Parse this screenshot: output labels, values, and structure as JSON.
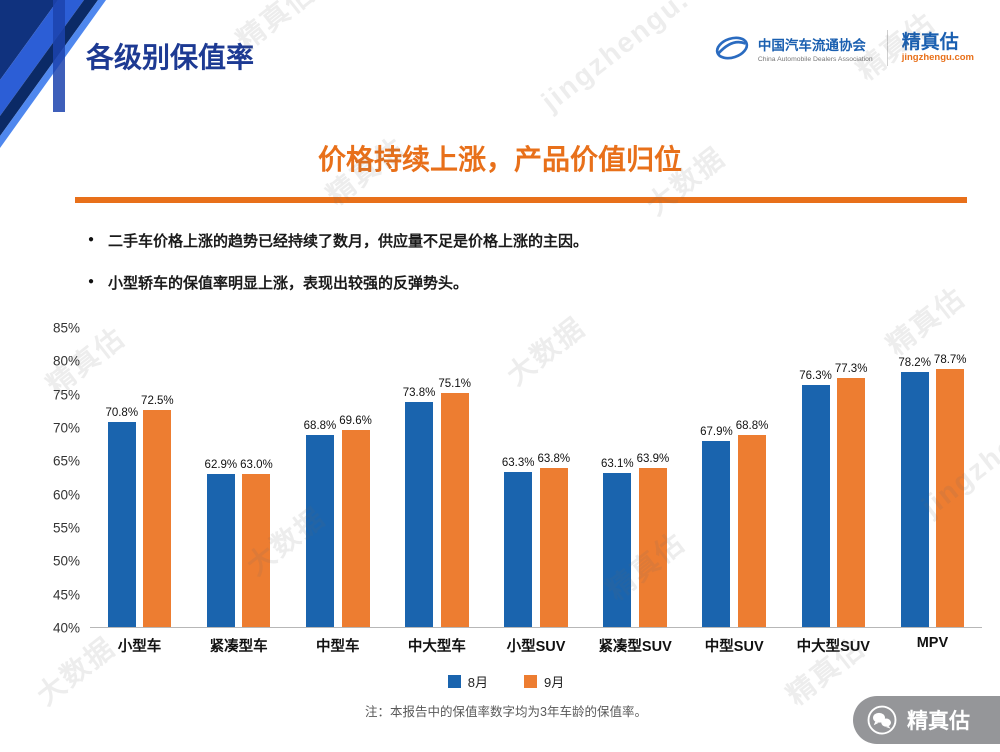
{
  "header": {
    "title": "各级别保值率",
    "cada": {
      "name_cn": "中国汽车流通协会",
      "name_en": "China Automobile Dealers Association"
    },
    "brand": {
      "name": "精真估",
      "domain": "jingzhengu.com"
    }
  },
  "subtitle": "价格持续上涨，产品价值归位",
  "bullet_glyph": "●",
  "bullets": [
    "二手车价格上涨的趋势已经持续了数月，供应量不足是价格上涨的主因。",
    "小型轿车的保值率明显上涨，表现出较强的反弹势头。"
  ],
  "chart_data": {
    "type": "bar",
    "categories": [
      "小型车",
      "紧凑型车",
      "中型车",
      "中大型车",
      "小型SUV",
      "紧凑型SUV",
      "中型SUV",
      "中大型SUV",
      "MPV"
    ],
    "series": [
      {
        "name": "8月",
        "color": "#1A64AE",
        "values": [
          70.8,
          62.9,
          68.8,
          73.8,
          63.3,
          63.1,
          67.9,
          76.3,
          78.2
        ]
      },
      {
        "name": "9月",
        "color": "#ED7D31",
        "values": [
          72.5,
          63.0,
          69.6,
          75.1,
          63.8,
          63.9,
          68.8,
          77.3,
          78.7
        ]
      }
    ],
    "title": "价格持续上涨，产品价值归位",
    "xlabel": "",
    "ylabel": "",
    "ylim": [
      40,
      85
    ],
    "ytick_step": 5,
    "yticks": [
      "85%",
      "80%",
      "75%",
      "70%",
      "65%",
      "60%",
      "55%",
      "50%",
      "45%",
      "40%"
    ],
    "grid": false,
    "legend_position": "bottom",
    "value_label_format": "0.0%"
  },
  "note": "注：本报告中的保值率数字均为3年车龄的保值率。",
  "footer_badge": {
    "label": "精真估"
  },
  "watermark": {
    "texts": [
      "精真估",
      "大数据",
      "jingzhengu.com"
    ]
  },
  "colors": {
    "title_blue": "#1D3A93",
    "accent_orange": "#E8701A",
    "bar_blue": "#1A64AE",
    "bar_orange": "#ED7D31"
  }
}
